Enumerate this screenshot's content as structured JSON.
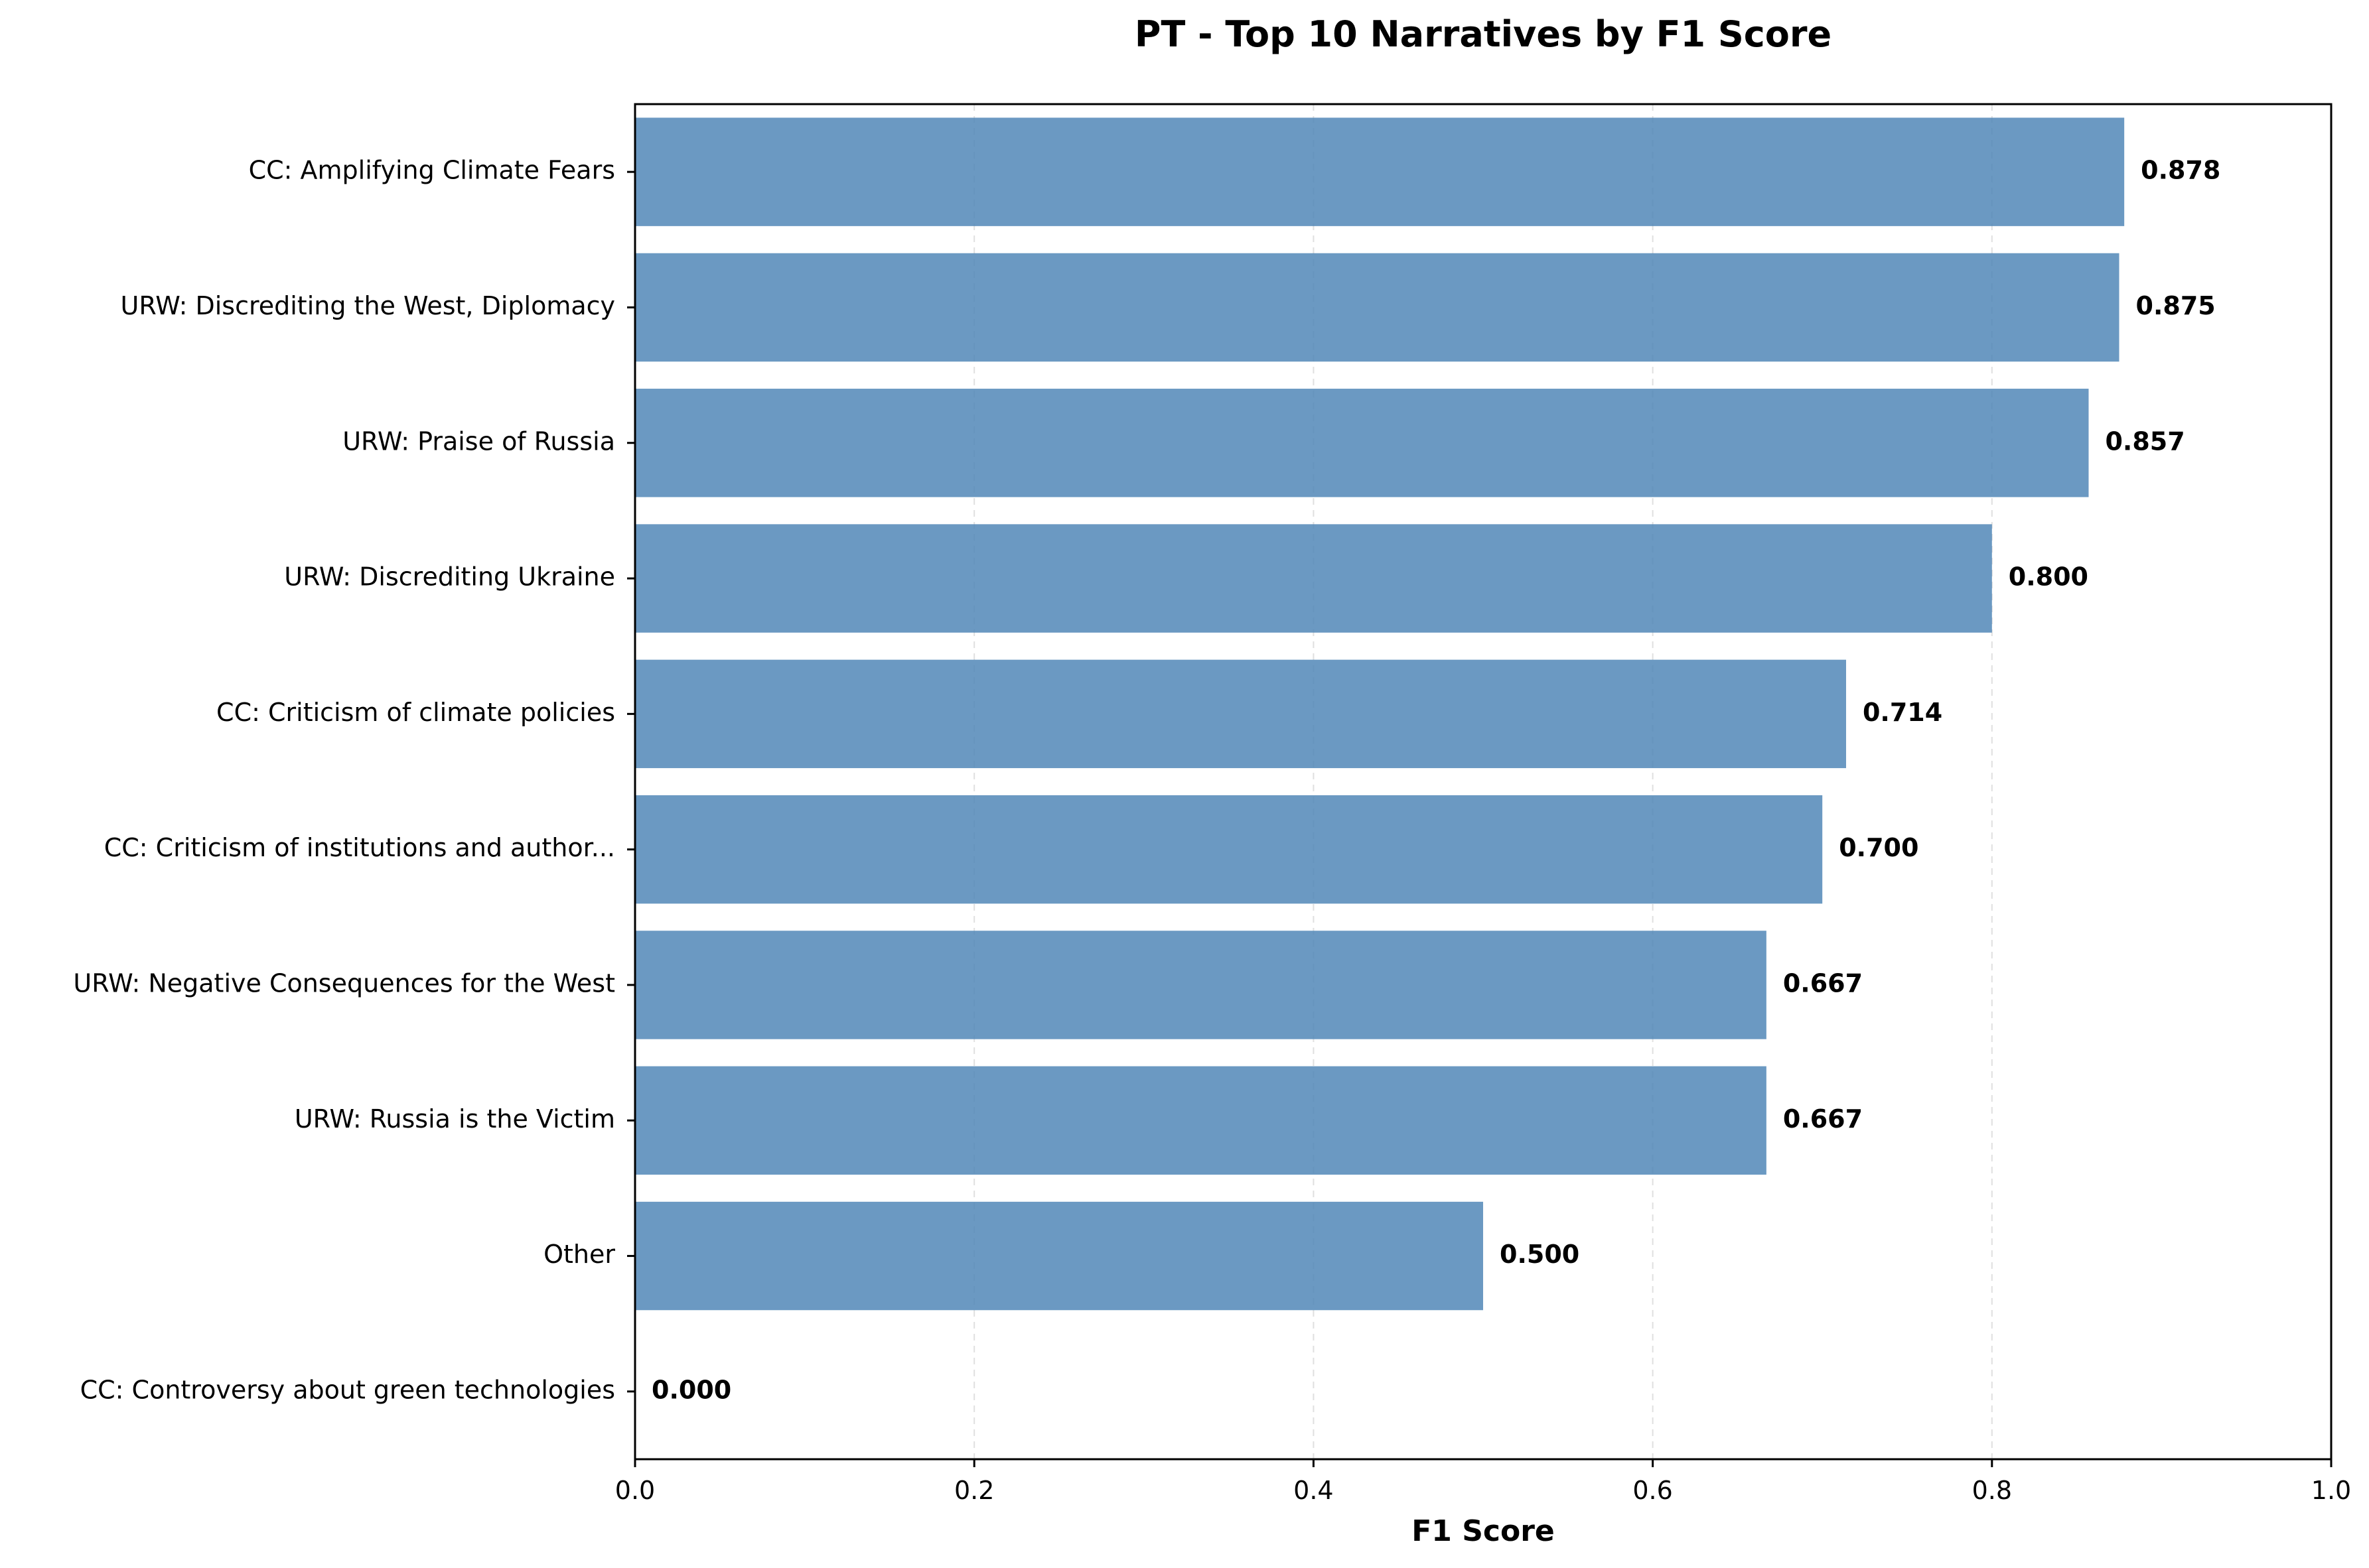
{
  "chart_data": {
    "type": "bar",
    "orientation": "horizontal",
    "title": "PT - Top 10 Narratives by F1 Score",
    "xlabel": "F1 Score",
    "ylabel": "",
    "xlim": [
      0,
      1.0
    ],
    "xticks": [
      "0.0",
      "0.2",
      "0.4",
      "0.6",
      "0.8",
      "1.0"
    ],
    "grid": "x-dashed",
    "categories": [
      "CC: Amplifying Climate Fears",
      "URW: Discrediting the West, Diplomacy",
      "URW: Praise of Russia",
      "URW: Discrediting Ukraine",
      "CC: Criticism of climate policies",
      "CC: Criticism of institutions and author...",
      "URW: Negative Consequences for the West",
      "URW: Russia is the Victim",
      "Other",
      "CC: Controversy about green technologies"
    ],
    "values": [
      0.878,
      0.875,
      0.857,
      0.8,
      0.714,
      0.7,
      0.667,
      0.667,
      0.5,
      0.0
    ],
    "value_labels": [
      "0.878",
      "0.875",
      "0.857",
      "0.800",
      "0.714",
      "0.700",
      "0.667",
      "0.667",
      "0.500",
      "0.000"
    ],
    "colors": {
      "bar": "#4a83b4",
      "grid": "#cccccc",
      "text": "#000000"
    }
  }
}
